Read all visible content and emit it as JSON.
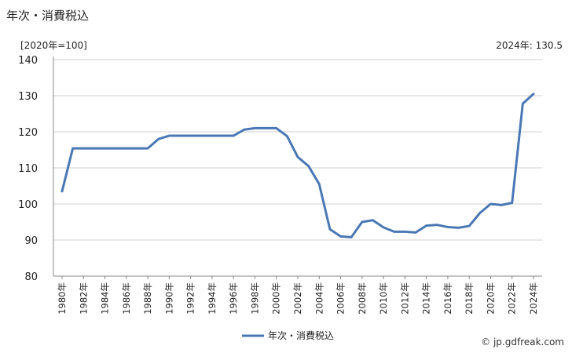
{
  "title": "年次・消費税込",
  "unit_label": "[2020年=100]",
  "latest_label": "2024年: 130.5",
  "credit": "© jp.gdfreak.com",
  "chart_data": {
    "type": "line",
    "title": "年次・消費税込",
    "ylabel": "[2020年=100]",
    "xlabel": "",
    "ylim": [
      80,
      140
    ],
    "yticks": [
      80,
      90,
      100,
      110,
      120,
      130,
      140
    ],
    "grid": true,
    "legend_position": "bottom",
    "x": [
      1980,
      1981,
      1982,
      1983,
      1984,
      1985,
      1986,
      1987,
      1988,
      1989,
      1990,
      1991,
      1992,
      1993,
      1994,
      1995,
      1996,
      1997,
      1998,
      1999,
      2000,
      2001,
      2002,
      2003,
      2004,
      2005,
      2006,
      2007,
      2008,
      2009,
      2010,
      2011,
      2012,
      2013,
      2014,
      2015,
      2016,
      2017,
      2018,
      2019,
      2020,
      2021,
      2022,
      2023,
      2024
    ],
    "x_tick_labels": [
      "1980年",
      "1982年",
      "1984年",
      "1986年",
      "1988年",
      "1990年",
      "1992年",
      "1994年",
      "1996年",
      "1998年",
      "2000年",
      "2002年",
      "2004年",
      "2006年",
      "2008年",
      "2010年",
      "2012年",
      "2014年",
      "2016年",
      "2018年",
      "2020年",
      "2022年",
      "2024年"
    ],
    "series": [
      {
        "name": "年次・消費税込",
        "color": "#4a78b4",
        "values": [
          103.5,
          115.4,
          115.4,
          115.4,
          115.4,
          115.4,
          115.4,
          115.4,
          115.4,
          118.0,
          118.9,
          118.9,
          118.9,
          118.9,
          118.9,
          118.9,
          118.9,
          120.6,
          121.0,
          121.0,
          121.0,
          118.8,
          113.0,
          110.5,
          105.5,
          93.0,
          91.0,
          90.8,
          95.0,
          95.5,
          93.5,
          92.3,
          92.3,
          92.1,
          94.0,
          94.2,
          93.6,
          93.4,
          93.9,
          97.5,
          100.0,
          99.7,
          100.3,
          127.8,
          130.5
        ]
      }
    ]
  }
}
